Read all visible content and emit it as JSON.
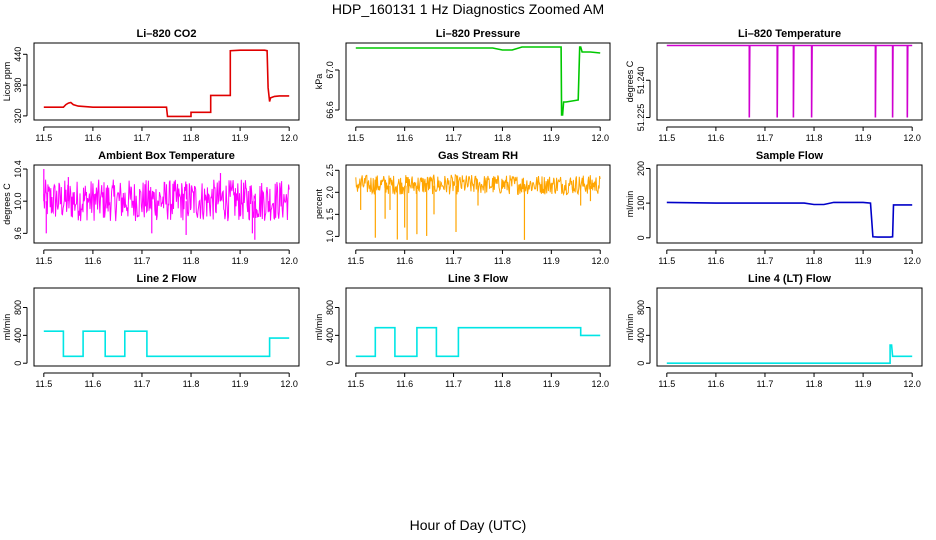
{
  "page": {
    "title": "HDP_160131  1 Hz Diagnostics Zoomed AM",
    "xlabel": "Hour of Day (UTC)"
  },
  "chart_data": [
    {
      "id": "co2",
      "type": "line",
      "title": "Li–820 CO2",
      "ylabel": "Licor ppm",
      "xlim": [
        11.48,
        12.02
      ],
      "ylim": [
        312,
        462
      ],
      "xticks": [
        11.5,
        11.6,
        11.7,
        11.8,
        11.9,
        12.0
      ],
      "xtick_labels": [
        "11.5",
        "11.6",
        "11.7",
        "11.8",
        "11.9",
        "12.0"
      ],
      "yticks": [
        320,
        380,
        440
      ],
      "ytick_labels": [
        "320",
        "380",
        "440"
      ],
      "color": "#e00000",
      "series": [
        {
          "x": [
            11.5,
            11.54,
            11.545,
            11.55,
            11.555,
            11.56,
            11.57,
            11.6,
            11.65,
            11.7,
            11.75,
            11.752,
            11.8,
            11.8,
            11.84,
            11.84,
            11.88,
            11.88,
            11.9,
            11.95,
            11.955,
            11.957,
            11.96,
            11.962,
            11.97,
            11.98,
            12.0
          ],
          "y": [
            337,
            337,
            342,
            345,
            346,
            342,
            339,
            337,
            337,
            337,
            337,
            319,
            319,
            327,
            327,
            360,
            360,
            447,
            448,
            448,
            447,
            375,
            348,
            355,
            358,
            359,
            359
          ]
        }
      ]
    },
    {
      "id": "pressure",
      "type": "line",
      "title": "Li–820 Pressure",
      "ylabel": "kPa",
      "xlim": [
        11.48,
        12.02
      ],
      "ylim": [
        66.5,
        67.27
      ],
      "xticks": [
        11.5,
        11.6,
        11.7,
        11.8,
        11.9,
        12.0
      ],
      "xtick_labels": [
        "11.5",
        "11.6",
        "11.7",
        "11.8",
        "11.9",
        "12.0"
      ],
      "yticks": [
        66.6,
        67.0
      ],
      "ytick_labels": [
        "66.6",
        "67.0"
      ],
      "color": "#00c800",
      "series": [
        {
          "x": [
            11.5,
            11.6,
            11.7,
            11.78,
            11.8,
            11.82,
            11.84,
            11.9,
            11.92,
            11.921,
            11.923,
            11.925,
            11.93,
            11.955,
            11.958,
            11.96,
            11.963,
            11.966,
            11.97,
            11.98,
            12.0
          ],
          "y": [
            67.22,
            67.22,
            67.22,
            67.22,
            67.2,
            67.2,
            67.23,
            67.23,
            67.23,
            66.55,
            66.55,
            66.68,
            66.68,
            66.7,
            67.23,
            67.23,
            67.18,
            67.18,
            67.18,
            67.18,
            67.17
          ]
        }
      ]
    },
    {
      "id": "licor_temp",
      "type": "line",
      "title": "Li–820 Temperature",
      "ylabel": "degrees C",
      "xlim": [
        11.48,
        12.02
      ],
      "ylim": [
        51.224,
        51.255
      ],
      "xticks": [
        11.5,
        11.6,
        11.7,
        11.8,
        11.9,
        12.0
      ],
      "xtick_labels": [
        "11.5",
        "11.6",
        "11.7",
        "11.8",
        "11.9",
        "12.0"
      ],
      "yticks": [
        51.225,
        51.24
      ],
      "ytick_labels": [
        "51.225",
        "51.240"
      ],
      "color": "#d000d0",
      "series": [
        {
          "x": [
            11.5,
            11.668,
            11.668,
            11.669,
            11.725,
            11.725,
            11.726,
            11.758,
            11.758,
            11.759,
            11.795,
            11.795,
            11.796,
            11.925,
            11.925,
            11.926,
            11.96,
            11.96,
            11.961,
            11.99,
            11.99,
            11.991,
            12.0
          ],
          "y": [
            51.254,
            51.254,
            51.225,
            51.254,
            51.254,
            51.225,
            51.254,
            51.254,
            51.225,
            51.254,
            51.254,
            51.225,
            51.254,
            51.254,
            51.225,
            51.254,
            51.254,
            51.225,
            51.254,
            51.254,
            51.225,
            51.254,
            51.254
          ]
        }
      ]
    },
    {
      "id": "ambient_temp",
      "type": "line",
      "title": "Ambient Box Temperature",
      "ylabel": "degrees C",
      "xlim": [
        11.48,
        12.02
      ],
      "ylim": [
        9.48,
        10.45
      ],
      "xticks": [
        11.5,
        11.6,
        11.7,
        11.8,
        11.9,
        12.0
      ],
      "xtick_labels": [
        "11.5",
        "11.6",
        "11.7",
        "11.8",
        "11.9",
        "12.0"
      ],
      "yticks": [
        9.6,
        10.0,
        10.4
      ],
      "ytick_labels": [
        "9.6",
        "10.0",
        "10.4"
      ],
      "color": "#ff00ff",
      "noise": {
        "mean": 10.0,
        "band": [
          9.75,
          10.27
        ],
        "spikes": [
          [
            11.5,
            10.4
          ],
          [
            11.505,
            9.6
          ],
          [
            11.72,
            9.6
          ],
          [
            11.79,
            9.58
          ],
          [
            11.925,
            9.6
          ],
          [
            11.93,
            9.52
          ],
          [
            11.86,
            10.35
          ],
          [
            11.55,
            10.3
          ]
        ]
      }
    },
    {
      "id": "rh",
      "type": "line",
      "title": "Gas Stream RH",
      "ylabel": "percent",
      "xlim": [
        11.48,
        12.02
      ],
      "ylim": [
        0.85,
        2.62
      ],
      "xticks": [
        11.5,
        11.6,
        11.7,
        11.8,
        11.9,
        12.0
      ],
      "xtick_labels": [
        "11.5",
        "11.6",
        "11.7",
        "11.8",
        "11.9",
        "12.0"
      ],
      "yticks": [
        1.0,
        1.5,
        2.0,
        2.5
      ],
      "ytick_labels": [
        "1.0",
        "1.5",
        "2.0",
        "2.5"
      ],
      "color": "#ffa500",
      "noise": {
        "mean": 2.15,
        "band": [
          1.95,
          2.4
        ],
        "spikes": [
          [
            11.54,
            0.97
          ],
          [
            11.585,
            0.93
          ],
          [
            11.605,
            0.92
          ],
          [
            11.625,
            1.05
          ],
          [
            11.645,
            1.01
          ],
          [
            11.705,
            1.1
          ],
          [
            11.845,
            0.92
          ],
          [
            11.56,
            1.4
          ],
          [
            11.6,
            1.2
          ],
          [
            11.51,
            1.6
          ],
          [
            11.57,
            1.6
          ],
          [
            11.66,
            1.5
          ],
          [
            11.75,
            1.7
          ],
          [
            11.96,
            1.7
          ],
          [
            11.98,
            1.8
          ]
        ]
      }
    },
    {
      "id": "sample_flow",
      "type": "line",
      "title": "Sample Flow",
      "ylabel": "ml/min",
      "xlim": [
        11.48,
        12.02
      ],
      "ylim": [
        -15,
        210
      ],
      "xticks": [
        11.5,
        11.6,
        11.7,
        11.8,
        11.9,
        12.0
      ],
      "xtick_labels": [
        "11.5",
        "11.6",
        "11.7",
        "11.8",
        "11.9",
        "12.0"
      ],
      "yticks": [
        0,
        100,
        200
      ],
      "ytick_labels": [
        "0",
        "100",
        "200"
      ],
      "color": "#0000c8",
      "series": [
        {
          "x": [
            11.5,
            11.6,
            11.7,
            11.78,
            11.8,
            11.82,
            11.84,
            11.9,
            11.915,
            11.92,
            11.93,
            11.955,
            11.96,
            11.962,
            11.97,
            12.0
          ],
          "y": [
            102,
            100,
            100,
            100,
            96,
            96,
            102,
            102,
            100,
            3,
            2,
            2,
            3,
            95,
            95,
            95
          ]
        }
      ]
    },
    {
      "id": "line2",
      "type": "line",
      "title": "Line 2 Flow",
      "ylabel": "ml/min",
      "xlim": [
        11.48,
        12.02
      ],
      "ylim": [
        -40,
        1080
      ],
      "xticks": [
        11.5,
        11.6,
        11.7,
        11.8,
        11.9,
        12.0
      ],
      "xtick_labels": [
        "11.5",
        "11.6",
        "11.7",
        "11.8",
        "11.9",
        "12.0"
      ],
      "yticks": [
        0,
        400,
        800
      ],
      "ytick_labels": [
        "0",
        "400",
        "800"
      ],
      "color": "#00e5e5",
      "series": [
        {
          "x": [
            11.5,
            11.54,
            11.54,
            11.58,
            11.58,
            11.625,
            11.625,
            11.665,
            11.665,
            11.71,
            11.71,
            11.96,
            11.96,
            12.0
          ],
          "y": [
            460,
            460,
            100,
            100,
            460,
            460,
            100,
            100,
            460,
            460,
            100,
            100,
            360,
            360
          ]
        }
      ]
    },
    {
      "id": "line3",
      "type": "line",
      "title": "Line 3 Flow",
      "ylabel": "ml/min",
      "xlim": [
        11.48,
        12.02
      ],
      "ylim": [
        -40,
        1080
      ],
      "xticks": [
        11.5,
        11.6,
        11.7,
        11.8,
        11.9,
        12.0
      ],
      "xtick_labels": [
        "11.5",
        "11.6",
        "11.7",
        "11.8",
        "11.9",
        "12.0"
      ],
      "yticks": [
        0,
        400,
        800
      ],
      "ytick_labels": [
        "0",
        "400",
        "800"
      ],
      "color": "#00e5e5",
      "series": [
        {
          "x": [
            11.5,
            11.54,
            11.54,
            11.58,
            11.58,
            11.625,
            11.625,
            11.665,
            11.665,
            11.71,
            11.71,
            11.96,
            11.96,
            12.0
          ],
          "y": [
            100,
            100,
            510,
            510,
            100,
            100,
            510,
            510,
            100,
            100,
            510,
            510,
            400,
            400
          ]
        }
      ]
    },
    {
      "id": "line4",
      "type": "line",
      "title": "Line 4 (LT) Flow",
      "ylabel": "ml/min",
      "xlim": [
        11.48,
        12.02
      ],
      "ylim": [
        -40,
        1080
      ],
      "xticks": [
        11.5,
        11.6,
        11.7,
        11.8,
        11.9,
        12.0
      ],
      "xtick_labels": [
        "11.5",
        "11.6",
        "11.7",
        "11.8",
        "11.9",
        "12.0"
      ],
      "yticks": [
        0,
        400,
        800
      ],
      "ytick_labels": [
        "0",
        "400",
        "800"
      ],
      "color": "#00e5e5",
      "series": [
        {
          "x": [
            11.5,
            11.9,
            11.955,
            11.955,
            11.958,
            11.96,
            11.96,
            12.0
          ],
          "y": [
            0,
            0,
            0,
            260,
            260,
            100,
            100,
            100
          ]
        }
      ]
    }
  ]
}
